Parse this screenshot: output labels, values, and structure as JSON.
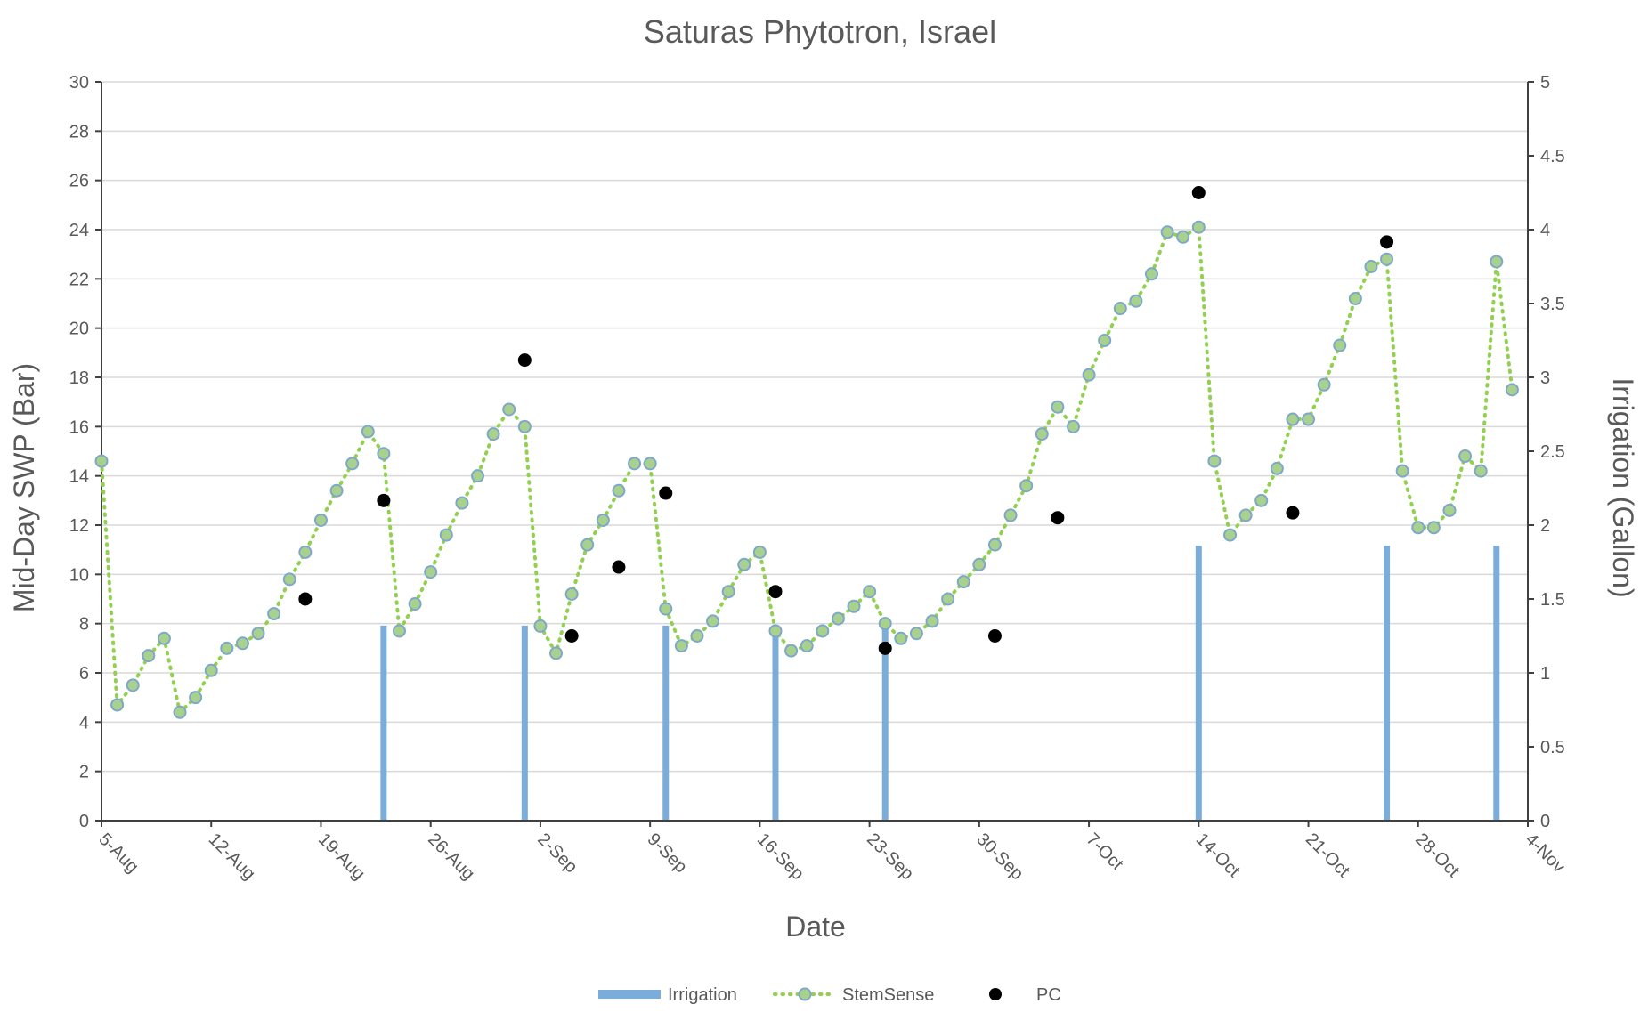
{
  "chart_data": {
    "type": "line",
    "title": "Saturas Phytotron, Israel",
    "xlabel": "Date",
    "ylabel": "Mid-Day SWP (Bar)",
    "y2label": "Irrigation (Gallon)",
    "xlim": [
      "2023-08-05",
      "2023-11-04"
    ],
    "ylim": [
      0,
      30
    ],
    "y2lim": [
      0,
      5
    ],
    "grid": true,
    "legend_position": "bottom",
    "x_ticks": [
      "5-Aug",
      "12-Aug",
      "19-Aug",
      "26-Aug",
      "2-Sep",
      "9-Sep",
      "16-Sep",
      "23-Sep",
      "30-Sep",
      "7-Oct",
      "14-Oct",
      "21-Oct",
      "28-Oct",
      "4-Nov"
    ],
    "y_ticks": [
      "0",
      "2",
      "4",
      "6",
      "8",
      "10",
      "12",
      "14",
      "16",
      "18",
      "20",
      "22",
      "24",
      "26",
      "28",
      "30"
    ],
    "y2_ticks": [
      "0",
      "0.5",
      "1",
      "1.5",
      "2",
      "2.5",
      "3",
      "3.5",
      "4",
      "4.5",
      "5"
    ],
    "series": [
      {
        "name": "Irrigation",
        "axis": "right",
        "style": "bar",
        "color": "#7aadd9",
        "x": [
          "2023-08-23",
          "2023-09-01",
          "2023-09-10",
          "2023-09-17",
          "2023-09-24",
          "2023-10-14",
          "2023-10-26",
          "2023-11-02"
        ],
        "values": [
          1.32,
          1.32,
          1.32,
          1.32,
          1.32,
          1.86,
          1.86,
          1.86
        ]
      },
      {
        "name": "StemSense",
        "axis": "left",
        "style": "dotted-line-markers",
        "color": "#92d050",
        "marker_fill": "#a9d18e",
        "marker_stroke": "#7fa7c9",
        "x": [
          "2023-08-05",
          "2023-08-06",
          "2023-08-07",
          "2023-08-08",
          "2023-08-09",
          "2023-08-10",
          "2023-08-11",
          "2023-08-12",
          "2023-08-13",
          "2023-08-14",
          "2023-08-15",
          "2023-08-16",
          "2023-08-17",
          "2023-08-18",
          "2023-08-19",
          "2023-08-20",
          "2023-08-21",
          "2023-08-22",
          "2023-08-23",
          "2023-08-24",
          "2023-08-25",
          "2023-08-26",
          "2023-08-27",
          "2023-08-28",
          "2023-08-29",
          "2023-08-30",
          "2023-08-31",
          "2023-09-01",
          "2023-09-02",
          "2023-09-03",
          "2023-09-04",
          "2023-09-05",
          "2023-09-06",
          "2023-09-07",
          "2023-09-08",
          "2023-09-09",
          "2023-09-10",
          "2023-09-11",
          "2023-09-12",
          "2023-09-13",
          "2023-09-14",
          "2023-09-15",
          "2023-09-16",
          "2023-09-17",
          "2023-09-18",
          "2023-09-19",
          "2023-09-20",
          "2023-09-21",
          "2023-09-22",
          "2023-09-23",
          "2023-09-24",
          "2023-09-25",
          "2023-09-26",
          "2023-09-27",
          "2023-09-28",
          "2023-09-29",
          "2023-09-30",
          "2023-10-01",
          "2023-10-02",
          "2023-10-03",
          "2023-10-04",
          "2023-10-05",
          "2023-10-06",
          "2023-10-07",
          "2023-10-08",
          "2023-10-09",
          "2023-10-10",
          "2023-10-11",
          "2023-10-12",
          "2023-10-13",
          "2023-10-14",
          "2023-10-15",
          "2023-10-16",
          "2023-10-17",
          "2023-10-18",
          "2023-10-19",
          "2023-10-20",
          "2023-10-21",
          "2023-10-22",
          "2023-10-23",
          "2023-10-24",
          "2023-10-25",
          "2023-10-26",
          "2023-10-27",
          "2023-10-28",
          "2023-10-29",
          "2023-10-30",
          "2023-10-31",
          "2023-11-01",
          "2023-11-02",
          "2023-11-03"
        ],
        "values": [
          14.6,
          4.7,
          5.5,
          6.7,
          7.4,
          4.4,
          5.0,
          6.1,
          7.0,
          7.2,
          7.6,
          8.4,
          9.8,
          10.9,
          12.2,
          13.4,
          14.5,
          15.8,
          14.9,
          7.7,
          8.8,
          10.1,
          11.6,
          12.9,
          14.0,
          15.7,
          16.7,
          16.0,
          7.9,
          6.8,
          9.2,
          11.2,
          12.2,
          13.4,
          14.5,
          14.5,
          8.6,
          7.1,
          7.5,
          8.1,
          9.3,
          10.4,
          10.9,
          7.7,
          6.9,
          7.1,
          7.7,
          8.2,
          8.7,
          9.3,
          8.0,
          7.4,
          7.6,
          8.1,
          9.0,
          9.7,
          10.4,
          11.2,
          12.4,
          13.6,
          15.7,
          16.8,
          16.0,
          18.1,
          19.5,
          20.8,
          21.1,
          22.2,
          23.9,
          23.7,
          24.1,
          14.6,
          11.6,
          12.4,
          13.0,
          14.3,
          16.3,
          16.3,
          17.7,
          19.3,
          21.2,
          22.5,
          22.8,
          14.2,
          11.9,
          11.9,
          12.6,
          14.8,
          14.2,
          22.7,
          17.5
        ]
      },
      {
        "name": "PC",
        "axis": "left",
        "style": "markers",
        "color": "#000000",
        "x": [
          "2023-08-18",
          "2023-08-23",
          "2023-09-01",
          "2023-09-04",
          "2023-09-07",
          "2023-09-10",
          "2023-09-17",
          "2023-09-24",
          "2023-10-01",
          "2023-10-05",
          "2023-10-20",
          "2023-10-14",
          "2023-10-26"
        ],
        "values": [
          9.0,
          13.0,
          18.7,
          7.5,
          10.3,
          13.3,
          9.3,
          7.0,
          7.5,
          12.3,
          12.5,
          25.5,
          23.5
        ]
      }
    ]
  }
}
